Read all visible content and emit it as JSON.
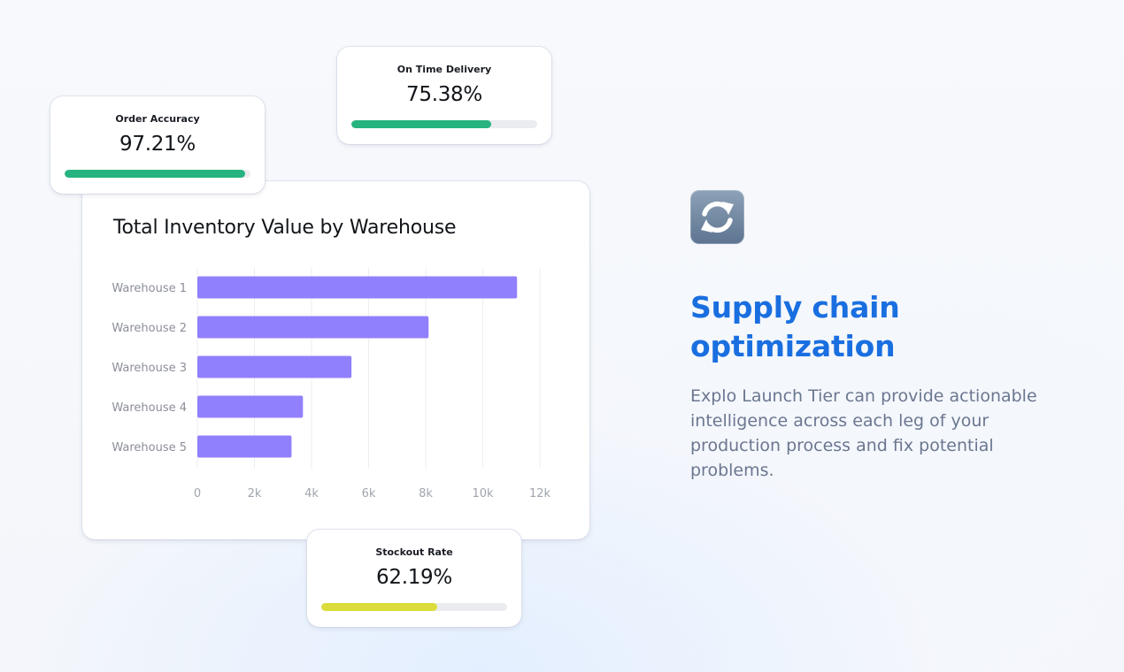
{
  "kpis": {
    "order_accuracy": {
      "label": "Order Accuracy",
      "value": "97.21%",
      "progress": 0.9721,
      "color": "#27b37f"
    },
    "on_time_delivery": {
      "label": "On Time Delivery",
      "value": "75.38%",
      "progress": 0.7538,
      "color": "#27b37f"
    },
    "stockout_rate": {
      "label": "Stockout Rate",
      "value": "62.19%",
      "progress": 0.6219,
      "color": "#dadd3b"
    }
  },
  "chart": {
    "title": "Total Inventory Value by Warehouse"
  },
  "chart_data": {
    "type": "bar",
    "orientation": "horizontal",
    "title": "Total Inventory Value by Warehouse",
    "categories": [
      "Warehouse 1",
      "Warehouse 2",
      "Warehouse 3",
      "Warehouse 4",
      "Warehouse 5"
    ],
    "values": [
      11200,
      8100,
      5400,
      3700,
      3300
    ],
    "xlim": [
      0,
      12000
    ],
    "x_ticks": [
      0,
      2000,
      4000,
      6000,
      8000,
      10000,
      12000
    ],
    "x_tick_labels": [
      "0",
      "2k",
      "4k",
      "6k",
      "8k",
      "10k",
      "12k"
    ],
    "bar_color": "#9180fd",
    "grid": true,
    "legend": "none"
  },
  "feature": {
    "icon": "sync-icon",
    "title": "Supply chain optimization",
    "description": "Explo Launch Tier can provide actionable intelligence across each leg of your production process and fix potential problems."
  },
  "colors": {
    "accent": "#1a6fe0",
    "bar": "#9180fd",
    "progress_green": "#27b37f",
    "progress_yellow": "#dadd3b"
  }
}
